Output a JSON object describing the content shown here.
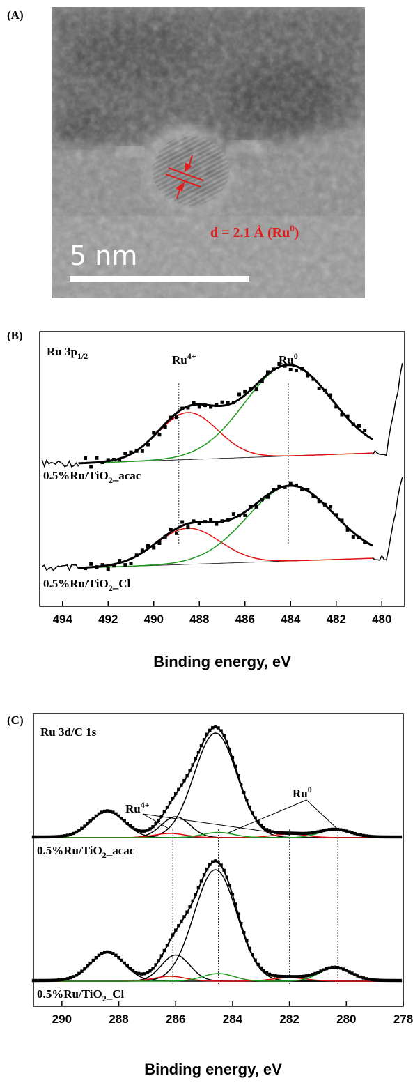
{
  "panel_a": {
    "letter": "(A)",
    "d_label": "d = 2.1 Å (Ru",
    "d_sup": "0",
    "d_close": ")",
    "scale_label": "5 nm"
  },
  "panel_b": {
    "letter": "(B)",
    "region_main": "Ru 3p",
    "region_sub": "1/2",
    "peak_ru4_main": "Ru",
    "peak_ru4_sup": "4+",
    "peak_ru0_main": "Ru",
    "peak_ru0_sup": "0",
    "sample1_a": "0.5%Ru/TiO",
    "sample1_sub": "2",
    "sample1_b": "_acac",
    "sample2_a": "0.5%Ru/TiO",
    "sample2_sub": "2",
    "sample2_b": "_Cl",
    "xlabel": "Binding energy, eV"
  },
  "panel_c": {
    "letter": "(C)",
    "region": "Ru 3d/C 1s",
    "peak_ru4_main": "Ru",
    "peak_ru4_sup": "4+",
    "peak_ru0_main": "Ru",
    "peak_ru0_sup": "0",
    "sample1_a": "0.5%Ru/TiO",
    "sample1_sub": "2",
    "sample1_b": "_acac",
    "sample2_a": "0.5%Ru/TiO",
    "sample2_sub": "2",
    "sample2_b": "_Cl",
    "xlabel": "Binding energy, eV"
  },
  "colors": {
    "envelope": "#000000",
    "ru4_component": "#e01010",
    "ru0_component": "#1a9a1a",
    "annotation_red": "#e31b1b",
    "tem_background": "#8a8a8a"
  },
  "chart_data": [
    {
      "id": "B",
      "type": "line",
      "title": "Ru 3p1/2",
      "xlabel": "Binding energy, eV",
      "ylabel": "",
      "x_reversed": true,
      "xlim": [
        495,
        479
      ],
      "xticks": [
        494,
        492,
        490,
        488,
        486,
        484,
        482,
        480
      ],
      "reference_lines": [
        488.9,
        484.1
      ],
      "series": [
        {
          "name": "0.5%Ru/TiO2_acac",
          "baseline": [
            [
              493.3,
              0.0
            ],
            [
              480.3,
              0.1
            ]
          ],
          "ru4": {
            "center": 488.5,
            "amp": 0.45,
            "sigma": 1.3
          },
          "ru0": {
            "center": 484.1,
            "amp": 0.87,
            "sigma": 1.9
          }
        },
        {
          "name": "0.5%Ru/TiO2_Cl",
          "baseline": [
            [
              493.3,
              0.0
            ],
            [
              480.3,
              0.1
            ]
          ],
          "ru4": {
            "center": 488.5,
            "amp": 0.37,
            "sigma": 1.4
          },
          "ru0": {
            "center": 484.0,
            "amp": 0.77,
            "sigma": 1.9
          }
        }
      ]
    },
    {
      "id": "C",
      "type": "line",
      "title": "Ru 3d/C 1s",
      "xlabel": "Binding energy, eV",
      "ylabel": "",
      "x_reversed": true,
      "xlim": [
        291,
        278
      ],
      "xticks": [
        290,
        288,
        286,
        284,
        282,
        280,
        278
      ],
      "reference_lines": [
        286.1,
        284.5,
        282.0,
        280.3
      ],
      "series": [
        {
          "name": "0.5%Ru/TiO2_acac",
          "c_components": [
            {
              "center": 284.6,
              "amp": 3.0,
              "sigma": 0.75
            },
            {
              "center": 286.0,
              "amp": 0.6,
              "sigma": 0.5
            },
            {
              "center": 288.4,
              "amp": 0.75,
              "sigma": 0.6
            }
          ],
          "ru4": [
            {
              "center": 286.2,
              "amp": 0.12,
              "sigma": 0.55
            },
            {
              "center": 282.0,
              "amp": 0.1,
              "sigma": 0.6
            }
          ],
          "ru0": [
            {
              "center": 284.5,
              "amp": 0.15,
              "sigma": 0.55
            },
            {
              "center": 280.4,
              "amp": 0.22,
              "sigma": 0.55
            }
          ]
        },
        {
          "name": "0.5%Ru/TiO2_Cl",
          "c_components": [
            {
              "center": 284.6,
              "amp": 3.2,
              "sigma": 0.75
            },
            {
              "center": 286.0,
              "amp": 0.75,
              "sigma": 0.5
            },
            {
              "center": 288.4,
              "amp": 0.82,
              "sigma": 0.6
            }
          ],
          "ru4": [
            {
              "center": 286.2,
              "amp": 0.14,
              "sigma": 0.55
            },
            {
              "center": 282.0,
              "amp": 0.1,
              "sigma": 0.6
            }
          ],
          "ru0": [
            {
              "center": 284.5,
              "amp": 0.22,
              "sigma": 0.55
            },
            {
              "center": 280.4,
              "amp": 0.38,
              "sigma": 0.55
            }
          ]
        }
      ]
    }
  ]
}
